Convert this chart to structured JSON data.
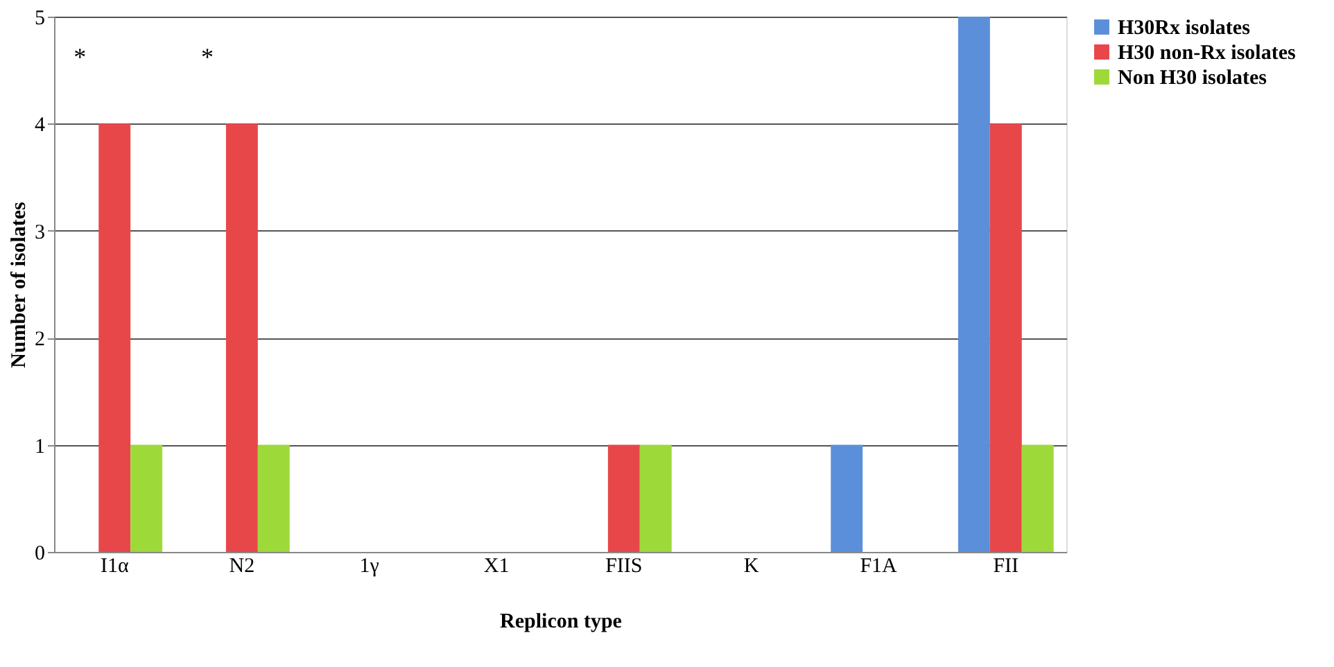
{
  "chart_data": {
    "type": "bar",
    "xlabel": "Replicon type",
    "ylabel": "Number of isolates",
    "categories": [
      "I1α",
      "N2",
      "1γ",
      "X1",
      "FIIS",
      "K",
      "F1A",
      "FII"
    ],
    "series": [
      {
        "name": "H30Rx isolates",
        "color": "#5b8fd9",
        "values": [
          0,
          0,
          0,
          0,
          0,
          0,
          1,
          5
        ]
      },
      {
        "name": "H30 non-Rx isolates",
        "color": "#e8474a",
        "values": [
          4,
          4,
          0,
          0,
          1,
          0,
          0,
          4
        ]
      },
      {
        "name": "Non H30 isolates",
        "color": "#9ed93a",
        "values": [
          1,
          1,
          0,
          0,
          1,
          0,
          0,
          1
        ]
      }
    ],
    "ylim": [
      0,
      5
    ],
    "yticks": [
      0,
      1,
      2,
      3,
      4,
      5
    ],
    "grid": "y",
    "legend": "right",
    "annotations": [
      "*",
      "*"
    ]
  }
}
